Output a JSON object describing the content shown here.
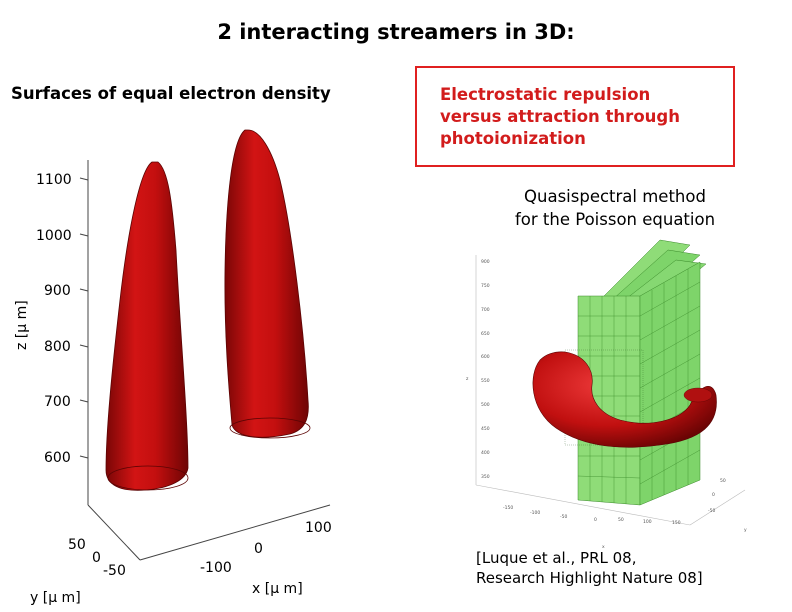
{
  "title": "2 interacting streamers in 3D:",
  "left_heading": "Surfaces of equal electron density",
  "red_box_text": [
    "Electrostatic repulsion",
    "versus attraction through",
    "photoionization"
  ],
  "method_text": [
    "Quasispectral method",
    "for the Poisson equation"
  ],
  "citation": [
    "[Luque et al., PRL 08,",
    "Research Highlight Nature 08]"
  ],
  "colors": {
    "streamer": "#cc1010",
    "box_border": "#e02020",
    "box_text": "#d21c1c",
    "grid_plane": "#7ed46a"
  },
  "plot3d": {
    "z_ticks": [
      "1100",
      "1000",
      "900",
      "800",
      "700",
      "600"
    ],
    "z_label": "z [μ m]",
    "x_ticks": [
      "100",
      "0",
      "-100"
    ],
    "x_label": "x [μ m]",
    "y_ticks": [
      "50",
      "0",
      "-50"
    ],
    "y_label": "y [μ m]"
  },
  "inset": {
    "z_ticks": [
      "900",
      "750",
      "700",
      "650",
      "600",
      "550",
      "500",
      "450",
      "400",
      "350"
    ],
    "x_ticks": [
      "-150",
      "-100",
      "-50",
      "0",
      "50",
      "100",
      "150"
    ],
    "y_ticks": [
      "50",
      "0",
      "-50"
    ],
    "z_label": "z",
    "x_label": "x",
    "y_label": "y"
  }
}
